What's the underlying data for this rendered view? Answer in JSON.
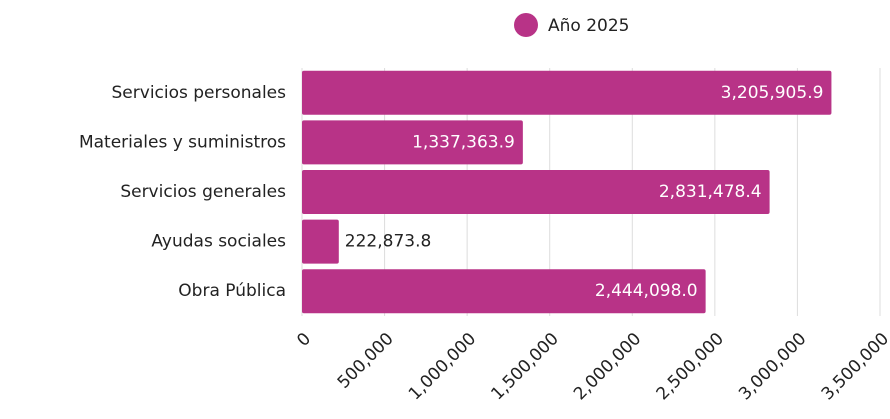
{
  "chart_data": {
    "type": "hbar",
    "categories": [
      "Servicios personales",
      "Materiales y suministros",
      "Servicios generales",
      "Ayudas sociales",
      "Obra Pública"
    ],
    "series": [
      {
        "name": "Año 2025",
        "color": "#b83387",
        "values": [
          3205905.9,
          1337363.9,
          2831478.4,
          222873.8,
          2444098.0
        ],
        "value_labels": [
          "3,205,905.9",
          "1,337,363.9",
          "2,831,478.4",
          "222,873.8",
          "2,444,098.0"
        ]
      }
    ],
    "xlim": [
      0,
      3500000
    ],
    "xticks": [
      0,
      {
        "value": 500000,
        "label": "500,000"
      },
      {
        "value": 1000000,
        "label": "1,000,000"
      },
      {
        "value": 1500000,
        "label": "1,500,000"
      },
      {
        "value": 2000000,
        "label": "2,000,000"
      },
      {
        "value": 2500000,
        "label": "2,500,000"
      },
      {
        "value": 3000000,
        "label": "3,000,000"
      },
      {
        "value": 3500000,
        "label": "3,500,000"
      }
    ],
    "grid": true
  }
}
